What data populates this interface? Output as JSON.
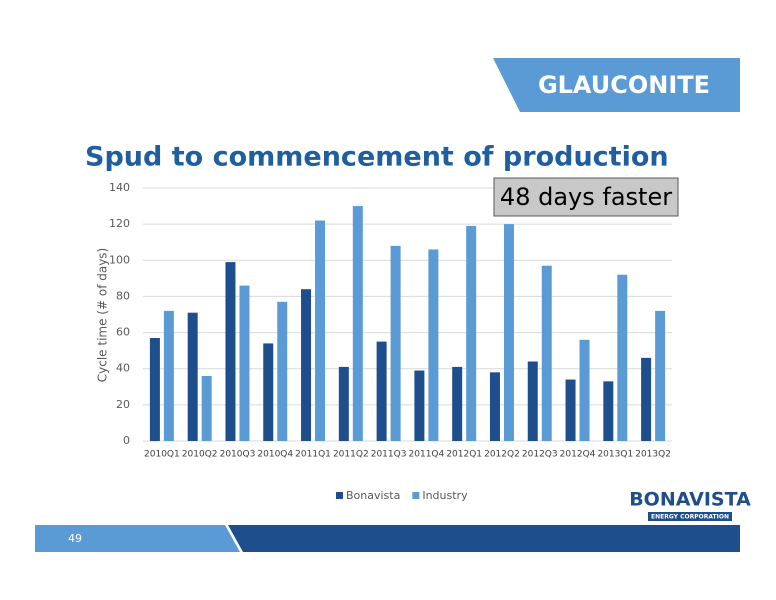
{
  "slide": {
    "header": "GLAUCONITE",
    "page_number": "49",
    "logo": "BONAVISTA",
    "logo_sub": "ENERGY CORPORATION"
  },
  "chart_data": {
    "type": "bar",
    "title": "Spud to commencement of production",
    "y_label": "Cycle time (# of days)",
    "annotation": "48 days faster",
    "categories": [
      "2010Q1",
      "2010Q2",
      "2010Q3",
      "2010Q4",
      "2011Q1",
      "2011Q2",
      "2011Q3",
      "2011Q4",
      "2012Q1",
      "2012Q2",
      "2012Q3",
      "2012Q4",
      "2013Q1",
      "2013Q2"
    ],
    "series": [
      {
        "name": "Bonavista",
        "color": "#1f4e8c",
        "values": [
          57,
          71,
          99,
          54,
          84,
          41,
          55,
          39,
          41,
          38,
          44,
          34,
          33,
          46
        ]
      },
      {
        "name": "Industry",
        "color": "#5b9bd5",
        "values": [
          72,
          36,
          86,
          77,
          122,
          130,
          108,
          106,
          119,
          120,
          97,
          56,
          92,
          72
        ]
      }
    ],
    "ylim": [
      0,
      140
    ],
    "yticks": [
      0,
      20,
      40,
      60,
      80,
      100,
      120,
      140
    ],
    "grid": true
  }
}
